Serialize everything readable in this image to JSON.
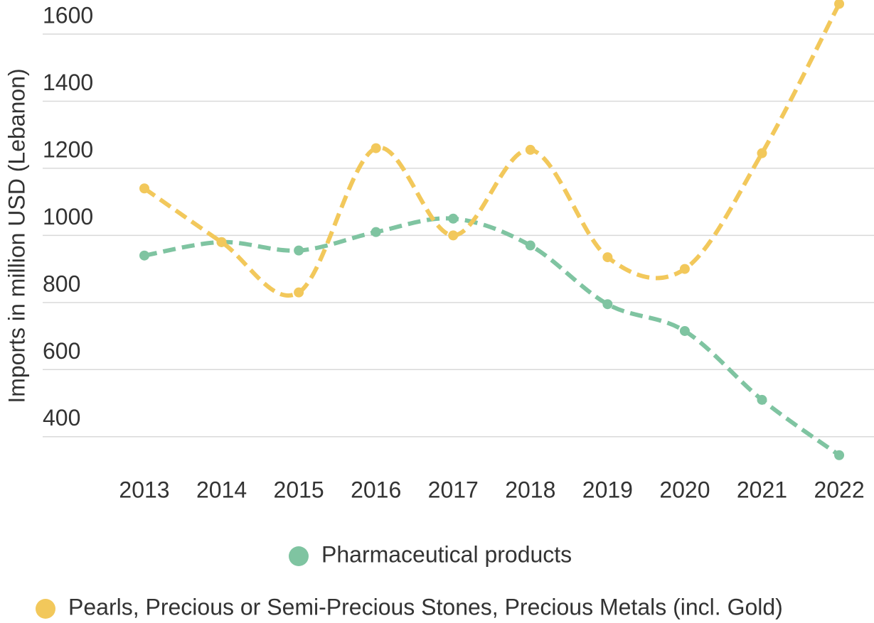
{
  "chart_data": {
    "type": "line",
    "y_label": "Imports in million USD (Lebanon)",
    "categories": [
      "2013",
      "2014",
      "2015",
      "2016",
      "2017",
      "2018",
      "2019",
      "2020",
      "2021",
      "2022"
    ],
    "series": [
      {
        "name": "Pharmaceutical products",
        "color": "#7fc4a1",
        "values": [
          940,
          980,
          955,
          1010,
          1050,
          970,
          795,
          715,
          510,
          345
        ]
      },
      {
        "name": "Pearls, Precious or Semi-Precious Stones, Precious Metals (incl. Gold)",
        "color": "#f2c85b",
        "values": [
          1140,
          980,
          830,
          1260,
          1000,
          1255,
          935,
          900,
          1245,
          1690
        ]
      }
    ],
    "ylim": [
      300,
      1700
    ],
    "yticks": [
      400,
      600,
      800,
      1000,
      1200,
      1400,
      1600
    ],
    "grid": true
  }
}
